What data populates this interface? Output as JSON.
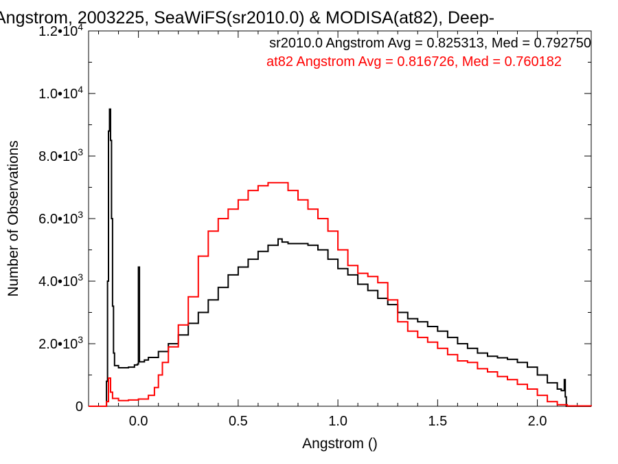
{
  "chart_data": {
    "type": "line",
    "title": "Angstrom, 2003225, SeaWiFS(sr2010.0) & MODISA(at82), Deep-",
    "xlabel": "Angstrom ()",
    "ylabel": "Number of Observations",
    "xlim": [
      -0.25,
      2.27
    ],
    "ylim": [
      0,
      12000
    ],
    "x_ticks": [
      0.0,
      0.5,
      1.0,
      1.5,
      2.0
    ],
    "x_tick_labels": [
      "0.0",
      "0.5",
      "1.0",
      "1.5",
      "2.0"
    ],
    "y_ticks": [
      0,
      2000,
      4000,
      6000,
      8000,
      10000,
      12000
    ],
    "y_tick_labels": [
      {
        "mantissa": "0",
        "exp": ""
      },
      {
        "mantissa": "2.0•10",
        "exp": "3"
      },
      {
        "mantissa": "4.0•10",
        "exp": "3"
      },
      {
        "mantissa": "6.0•10",
        "exp": "3"
      },
      {
        "mantissa": "8.0•10",
        "exp": "3"
      },
      {
        "mantissa": "1.0•10",
        "exp": "4"
      },
      {
        "mantissa": "1.2•10",
        "exp": "4"
      }
    ],
    "annotations": [
      {
        "text": "sr2010.0 Angstrom Avg = 0.825313, Med = 0.792750",
        "color": "#000000"
      },
      {
        "text": "at82 Angstrom Avg = 0.816726, Med = 0.760182",
        "color": "#ff0000"
      }
    ],
    "series": [
      {
        "color": "#000000",
        "points": [
          [
            -0.25,
            0
          ],
          [
            -0.17,
            0
          ],
          [
            -0.16,
            800
          ],
          [
            -0.155,
            4000
          ],
          [
            -0.15,
            8800
          ],
          [
            -0.145,
            9500
          ],
          [
            -0.14,
            8500
          ],
          [
            -0.135,
            6000
          ],
          [
            -0.13,
            3200
          ],
          [
            -0.125,
            1700
          ],
          [
            -0.12,
            1300
          ],
          [
            -0.1,
            1230
          ],
          [
            -0.05,
            1250
          ],
          [
            -0.02,
            1320
          ],
          [
            -0.005,
            1350
          ],
          [
            0.0,
            4450
          ],
          [
            0.005,
            1420
          ],
          [
            0.03,
            1480
          ],
          [
            0.05,
            1560
          ],
          [
            0.1,
            1750
          ],
          [
            0.15,
            2000
          ],
          [
            0.2,
            2280
          ],
          [
            0.25,
            2650
          ],
          [
            0.3,
            3000
          ],
          [
            0.35,
            3400
          ],
          [
            0.4,
            3800
          ],
          [
            0.45,
            4200
          ],
          [
            0.5,
            4450
          ],
          [
            0.55,
            4700
          ],
          [
            0.6,
            4950
          ],
          [
            0.65,
            5150
          ],
          [
            0.7,
            5350
          ],
          [
            0.72,
            5250
          ],
          [
            0.75,
            5200
          ],
          [
            0.8,
            5200
          ],
          [
            0.85,
            5150
          ],
          [
            0.9,
            5000
          ],
          [
            0.95,
            4700
          ],
          [
            1.0,
            4400
          ],
          [
            1.05,
            4200
          ],
          [
            1.1,
            3900
          ],
          [
            1.15,
            3700
          ],
          [
            1.2,
            3450
          ],
          [
            1.25,
            3250
          ],
          [
            1.3,
            3000
          ],
          [
            1.35,
            2800
          ],
          [
            1.4,
            2700
          ],
          [
            1.45,
            2550
          ],
          [
            1.5,
            2400
          ],
          [
            1.55,
            2200
          ],
          [
            1.6,
            2000
          ],
          [
            1.65,
            1850
          ],
          [
            1.7,
            1700
          ],
          [
            1.75,
            1600
          ],
          [
            1.8,
            1550
          ],
          [
            1.85,
            1500
          ],
          [
            1.9,
            1400
          ],
          [
            1.95,
            1250
          ],
          [
            2.0,
            1000
          ],
          [
            2.05,
            750
          ],
          [
            2.1,
            550
          ],
          [
            2.12,
            500
          ],
          [
            2.135,
            850
          ],
          [
            2.14,
            300
          ],
          [
            2.145,
            0
          ],
          [
            2.27,
            0
          ]
        ]
      },
      {
        "color": "#ff0000",
        "points": [
          [
            -0.25,
            0
          ],
          [
            -0.18,
            0
          ],
          [
            -0.16,
            150
          ],
          [
            -0.15,
            900
          ],
          [
            -0.14,
            450
          ],
          [
            -0.13,
            250
          ],
          [
            -0.1,
            180
          ],
          [
            -0.05,
            200
          ],
          [
            0.0,
            230
          ],
          [
            0.05,
            350
          ],
          [
            0.08,
            600
          ],
          [
            0.1,
            1000
          ],
          [
            0.12,
            1400
          ],
          [
            0.15,
            1900
          ],
          [
            0.2,
            2600
          ],
          [
            0.25,
            3500
          ],
          [
            0.3,
            4800
          ],
          [
            0.35,
            5600
          ],
          [
            0.4,
            6000
          ],
          [
            0.45,
            6300
          ],
          [
            0.5,
            6600
          ],
          [
            0.55,
            6900
          ],
          [
            0.6,
            7050
          ],
          [
            0.65,
            7150
          ],
          [
            0.7,
            7150
          ],
          [
            0.75,
            6900
          ],
          [
            0.8,
            6600
          ],
          [
            0.85,
            6300
          ],
          [
            0.9,
            6000
          ],
          [
            0.95,
            5600
          ],
          [
            1.0,
            5000
          ],
          [
            1.05,
            4500
          ],
          [
            1.1,
            4250
          ],
          [
            1.15,
            4150
          ],
          [
            1.2,
            3950
          ],
          [
            1.25,
            3400
          ],
          [
            1.3,
            2700
          ],
          [
            1.35,
            2400
          ],
          [
            1.4,
            2200
          ],
          [
            1.45,
            2050
          ],
          [
            1.5,
            1850
          ],
          [
            1.55,
            1650
          ],
          [
            1.6,
            1450
          ],
          [
            1.65,
            1400
          ],
          [
            1.7,
            1200
          ],
          [
            1.75,
            1100
          ],
          [
            1.8,
            950
          ],
          [
            1.85,
            850
          ],
          [
            1.9,
            700
          ],
          [
            1.95,
            550
          ],
          [
            2.0,
            350
          ],
          [
            2.05,
            150
          ],
          [
            2.1,
            50
          ],
          [
            2.15,
            10
          ],
          [
            2.27,
            0
          ]
        ]
      }
    ]
  }
}
